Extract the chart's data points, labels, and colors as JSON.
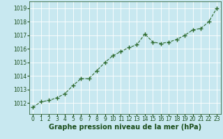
{
  "x": [
    0,
    1,
    2,
    3,
    4,
    5,
    6,
    7,
    8,
    9,
    10,
    11,
    12,
    13,
    14,
    15,
    16,
    17,
    18,
    19,
    20,
    21,
    22,
    23
  ],
  "y": [
    1011.7,
    1012.1,
    1012.2,
    1012.4,
    1012.7,
    1013.3,
    1013.8,
    1013.8,
    1014.4,
    1015.0,
    1015.5,
    1015.8,
    1016.1,
    1016.3,
    1017.1,
    1016.5,
    1016.4,
    1016.5,
    1016.7,
    1017.0,
    1017.4,
    1017.5,
    1018.0,
    1019.0
  ],
  "line_color": "#2d6a2d",
  "marker": "+",
  "marker_size": 4,
  "line_width": 0.8,
  "bg_color": "#c8e8f0",
  "grid_color": "#ffffff",
  "xlabel": "Graphe pression niveau de la mer (hPa)",
  "xlabel_color": "#1a4d1a",
  "xlabel_fontsize": 7,
  "tick_color": "#1a4d1a",
  "tick_fontsize": 5.5,
  "ylim": [
    1011.2,
    1019.5
  ],
  "yticks": [
    1012,
    1013,
    1014,
    1015,
    1016,
    1017,
    1018,
    1019
  ],
  "xlim": [
    -0.5,
    23.5
  ],
  "xticks": [
    0,
    1,
    2,
    3,
    4,
    5,
    6,
    7,
    8,
    9,
    10,
    11,
    12,
    13,
    14,
    15,
    16,
    17,
    18,
    19,
    20,
    21,
    22,
    23
  ]
}
